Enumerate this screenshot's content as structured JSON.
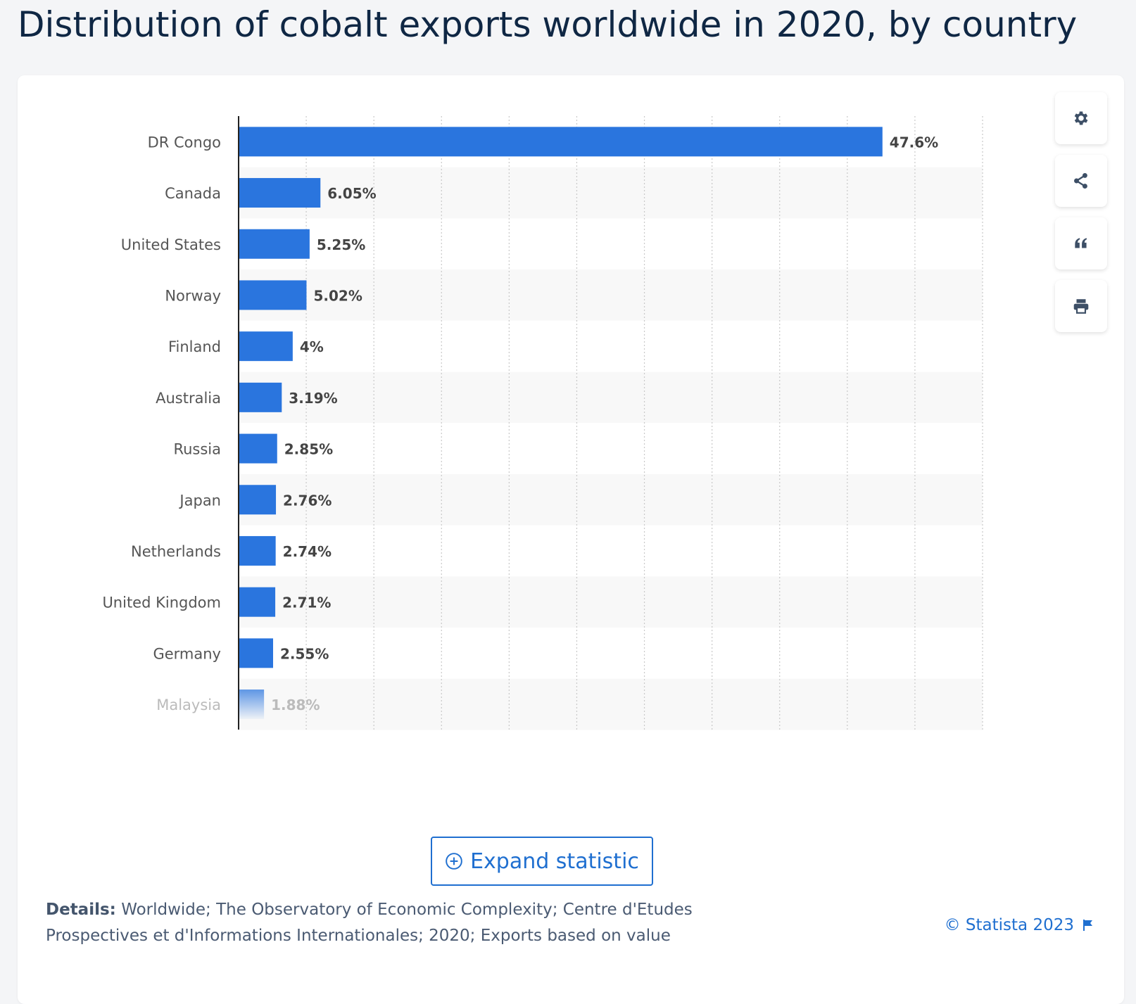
{
  "page": {
    "title": "Distribution of cobalt exports worldwide in 2020, by country"
  },
  "toolbar": {
    "settings_icon": "gear-icon",
    "share_icon": "share-icon",
    "cite_icon": "quote-icon",
    "print_icon": "printer-icon"
  },
  "chart_data": {
    "type": "bar",
    "orientation": "horizontal",
    "categories": [
      "DR Congo",
      "Canada",
      "United States",
      "Norway",
      "Finland",
      "Australia",
      "Russia",
      "Japan",
      "Netherlands",
      "United Kingdom",
      "Germany",
      "Malaysia"
    ],
    "values": [
      47.6,
      6.05,
      5.25,
      5.02,
      4,
      3.19,
      2.85,
      2.76,
      2.74,
      2.71,
      2.55,
      1.88
    ],
    "value_labels": [
      "47.6%",
      "6.05%",
      "5.25%",
      "5.02%",
      "4%",
      "3.19%",
      "2.85%",
      "2.76%",
      "2.74%",
      "2.71%",
      "2.55%",
      "1.88%"
    ],
    "xlim": [
      0,
      55
    ],
    "grid": true,
    "bar_color": "#2a75de",
    "label_color": "#444444",
    "stripe_color": "#f8f8f8",
    "faded_last_row": true
  },
  "expand": {
    "label": "Expand statistic",
    "icon": "plus-circle-icon"
  },
  "details": {
    "label": "Details:",
    "text": "Worldwide; The Observatory of Economic Complexity; Centre d'Etudes Prospectives et d'Informations Internationales; 2020; Exports based on value"
  },
  "footer": {
    "copyright": "© Statista 2023",
    "flag_icon": "flag-icon"
  },
  "colors": {
    "accent": "#1f6fd0",
    "title": "#0f2744"
  }
}
